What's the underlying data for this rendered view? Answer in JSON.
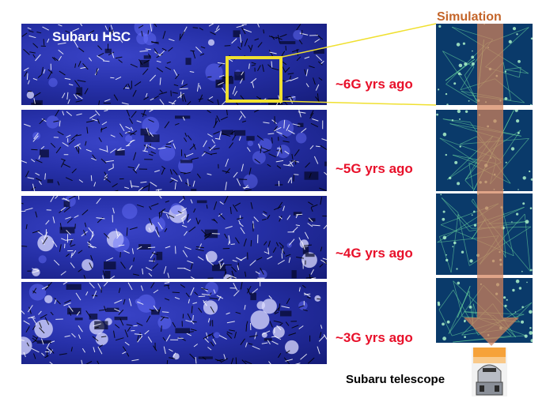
{
  "survey": {
    "title": "Subaru HSC"
  },
  "simulation": {
    "title": "Simulation"
  },
  "epochs": [
    {
      "label": "~6G yrs ago"
    },
    {
      "label": "~5G yrs ago"
    },
    {
      "label": "~4G yrs ago"
    },
    {
      "label": "~3G yrs ago"
    }
  ],
  "telescope": {
    "label": "Subaru telescope"
  },
  "colors": {
    "map_blue": "#2630a8",
    "epoch_text": "#e8102a",
    "simulation_text": "#c4652a",
    "highlight_box": "#f0e030",
    "arrow": "#d4825a",
    "filament": "#6ee0a0"
  },
  "icons": [
    "telescope-icon",
    "down-arrow-icon"
  ]
}
